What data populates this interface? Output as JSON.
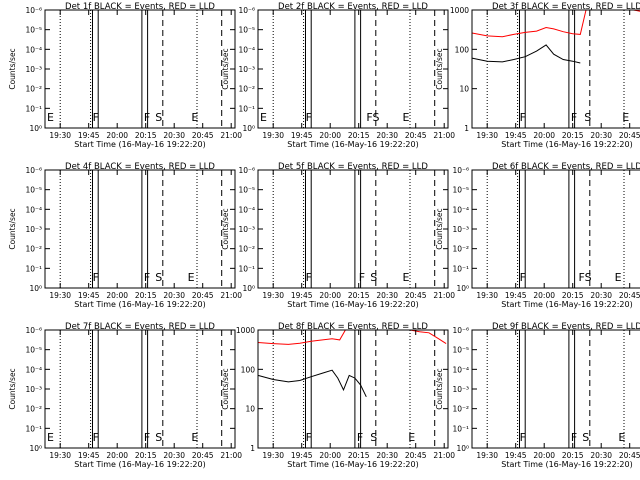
{
  "chart_data": [
    {
      "type": "line",
      "title": "Det 1f BLACK = Events, RED = LLD",
      "xlabel": "Start Time (16-May-16 19:22:20)",
      "ylabel": "Counts/sec",
      "yscale": "log",
      "ylim": [
        1,
        1000000
      ],
      "yticks": [
        "10⁰",
        "10⁻¹",
        "10⁻²",
        "10⁻³",
        "10⁻⁴",
        "10⁻⁵",
        "10⁻⁶"
      ],
      "xticks": [
        "19:30",
        "19:45",
        "20:00",
        "20:15",
        "20:30",
        "20:45",
        "21:00"
      ],
      "markers": [
        {
          "label": "E",
          "x": "19:22"
        },
        {
          "label": "F",
          "x": "19:46"
        },
        {
          "label": "F",
          "x": "20:13"
        },
        {
          "label": "S",
          "x": "20:19"
        },
        {
          "label": "E",
          "x": "20:38"
        }
      ],
      "series": []
    },
    {
      "type": "line",
      "title": "Det 2f BLACK = Events, RED = LLD",
      "xlabel": "Start Time (16-May-16 19:22:20)",
      "ylabel": "Counts/sec",
      "yscale": "log",
      "ylim": [
        1,
        1000000
      ],
      "yticks": [
        "10⁰",
        "10⁻¹",
        "10⁻²",
        "10⁻³",
        "10⁻⁴",
        "10⁻⁵",
        "10⁻⁶"
      ],
      "xticks": [
        "19:30",
        "19:45",
        "20:00",
        "20:15",
        "20:30",
        "20:45",
        "21:00"
      ],
      "markers": [
        {
          "label": "E",
          "x": "19:22"
        },
        {
          "label": "F",
          "x": "19:46"
        },
        {
          "label": "FS",
          "x": "20:18"
        },
        {
          "label": "E",
          "x": "20:37"
        }
      ],
      "series": []
    },
    {
      "type": "line",
      "title": "Det 3f BLACK = Events, RED = LLD",
      "xlabel": "Start Time (16-May-16 19:22:20)",
      "ylabel": "Counts/sec",
      "yscale": "log",
      "ylim": [
        1,
        1000
      ],
      "yticks": [
        "1",
        "10",
        "100",
        "1000"
      ],
      "xticks": [
        "19:30",
        "19:45",
        "20:00",
        "20:15",
        "20:30",
        "20:45",
        "21:00"
      ],
      "markers": [
        {
          "label": "F",
          "x": "19:46"
        },
        {
          "label": "F",
          "x": "20:13"
        },
        {
          "label": "S",
          "x": "20:20"
        },
        {
          "label": "E",
          "x": "20:40"
        }
      ],
      "series": [
        {
          "color": "#ff0000",
          "x": [
            "19:22",
            "19:30",
            "19:38",
            "19:44",
            "19:50",
            "19:56",
            "20:01",
            "20:05",
            "20:10",
            "20:15",
            "20:19",
            "20:22",
            "20:27",
            "20:35",
            "20:42",
            "20:47",
            "20:52",
            "20:57",
            "21:01"
          ],
          "values": [
            260,
            220,
            210,
            240,
            270,
            290,
            360,
            330,
            280,
            250,
            240,
            1000,
            1000,
            1000,
            1000,
            1000,
            900,
            600,
            500
          ]
        },
        {
          "color": "#000000",
          "x": [
            "19:22",
            "19:30",
            "19:38",
            "19:44",
            "19:50",
            "19:56",
            "20:01",
            "20:05",
            "20:10",
            "20:15",
            "20:19"
          ],
          "values": [
            60,
            50,
            48,
            55,
            65,
            90,
            130,
            75,
            55,
            50,
            45
          ]
        }
      ]
    },
    {
      "type": "line",
      "title": "Det 4f BLACK = Events, RED = LLD",
      "xlabel": "Start Time (16-May-16 19:22:20)",
      "ylabel": "Counts/sec",
      "yscale": "log",
      "ylim": [
        1,
        1000000
      ],
      "yticks": [
        "10⁰",
        "10⁻¹",
        "10⁻²",
        "10⁻³",
        "10⁻⁴",
        "10⁻⁵",
        "10⁻⁶"
      ],
      "xticks": [
        "19:30",
        "19:45",
        "20:00",
        "20:15",
        "20:30",
        "20:45",
        "21:00"
      ],
      "markers": [
        {
          "label": "F",
          "x": "19:46"
        },
        {
          "label": "F",
          "x": "20:13"
        },
        {
          "label": "S",
          "x": "20:19"
        },
        {
          "label": "E",
          "x": "20:36"
        }
      ],
      "series": []
    },
    {
      "type": "line",
      "title": "Det 5f BLACK = Events, RED = LLD",
      "xlabel": "Start Time (16-May-16 19:22:20)",
      "ylabel": "Counts/sec",
      "yscale": "log",
      "ylim": [
        1,
        1000000
      ],
      "yticks": [
        "10⁰",
        "10⁻¹",
        "10⁻²",
        "10⁻³",
        "10⁻⁴",
        "10⁻⁵",
        "10⁻⁶"
      ],
      "xticks": [
        "19:30",
        "19:45",
        "20:00",
        "20:15",
        "20:30",
        "20:45",
        "21:00"
      ],
      "markers": [
        {
          "label": "F",
          "x": "19:46"
        },
        {
          "label": "F",
          "x": "20:14"
        },
        {
          "label": "S",
          "x": "20:20"
        },
        {
          "label": "E",
          "x": "20:37"
        }
      ],
      "series": []
    },
    {
      "type": "line",
      "title": "Det 6f BLACK = Events, RED = LLD",
      "xlabel": "Start Time (16-May-16 19:22:20)",
      "ylabel": "Counts/sec",
      "yscale": "log",
      "ylim": [
        1,
        1000000
      ],
      "yticks": [
        "10⁰",
        "10⁻¹",
        "10⁻²",
        "10⁻³",
        "10⁻⁴",
        "10⁻⁵",
        "10⁻⁶"
      ],
      "xticks": [
        "19:30",
        "19:45",
        "20:00",
        "20:15",
        "20:30",
        "20:45",
        "21:00"
      ],
      "markers": [
        {
          "label": "F",
          "x": "19:46"
        },
        {
          "label": "FS",
          "x": "20:17"
        },
        {
          "label": "E",
          "x": "20:36"
        }
      ],
      "series": []
    },
    {
      "type": "line",
      "title": "Det 7f BLACK = Events, RED = LLD",
      "xlabel": "Start Time (16-May-16 19:22:20)",
      "ylabel": "Counts/sec",
      "yscale": "log",
      "ylim": [
        1,
        1000000
      ],
      "yticks": [
        "10⁰",
        "10⁻¹",
        "10⁻²",
        "10⁻³",
        "10⁻⁴",
        "10⁻⁵",
        "10⁻⁶"
      ],
      "xticks": [
        "19:30",
        "19:45",
        "20:00",
        "20:15",
        "20:30",
        "20:45",
        "21:00"
      ],
      "markers": [
        {
          "label": "E",
          "x": "19:22"
        },
        {
          "label": "F",
          "x": "19:46"
        },
        {
          "label": "F",
          "x": "20:13"
        },
        {
          "label": "S",
          "x": "20:19"
        },
        {
          "label": "E",
          "x": "20:38"
        }
      ],
      "series": []
    },
    {
      "type": "line",
      "title": "Det 8f BLACK = Events, RED = LLD",
      "xlabel": "Start Time (16-May-16 19:22:20)",
      "ylabel": "Counts/sec",
      "yscale": "log",
      "ylim": [
        1,
        1000
      ],
      "yticks": [
        "1",
        "10",
        "100",
        "1000"
      ],
      "xticks": [
        "19:30",
        "19:45",
        "20:00",
        "20:15",
        "20:30",
        "20:45",
        "21:00"
      ],
      "markers": [
        {
          "label": "F",
          "x": "19:46"
        },
        {
          "label": "F",
          "x": "20:13"
        },
        {
          "label": "S",
          "x": "20:20"
        },
        {
          "label": "E",
          "x": "20:40"
        }
      ],
      "series": [
        {
          "color": "#ff0000",
          "x": [
            "19:22",
            "19:30",
            "19:38",
            "19:44",
            "19:50",
            "19:56",
            "20:01",
            "20:05",
            "20:08",
            "20:11",
            "20:15",
            "20:19",
            "20:22",
            "20:27",
            "20:35",
            "20:42",
            "20:47",
            "20:52",
            "20:57",
            "21:01"
          ],
          "values": [
            480,
            450,
            430,
            460,
            520,
            560,
            600,
            560,
            1000,
            1000,
            1000,
            1000,
            1000,
            1000,
            1000,
            1000,
            900,
            850,
            600,
            450
          ]
        },
        {
          "color": "#000000",
          "x": [
            "19:22",
            "19:30",
            "19:38",
            "19:44",
            "19:50",
            "19:56",
            "20:01",
            "20:04",
            "20:07",
            "20:10",
            "20:13",
            "20:16",
            "20:19"
          ],
          "values": [
            70,
            55,
            48,
            52,
            65,
            80,
            95,
            60,
            30,
            70,
            60,
            40,
            20
          ]
        }
      ]
    },
    {
      "type": "line",
      "title": "Det 9f BLACK = Events, RED = LLD",
      "xlabel": "Start Time (16-May-16 19:22:20)",
      "ylabel": "Counts/sec",
      "yscale": "log",
      "ylim": [
        1,
        1000000
      ],
      "yticks": [
        "10⁰",
        "10⁻¹",
        "10⁻²",
        "10⁻³",
        "10⁻⁴",
        "10⁻⁵",
        "10⁻⁶"
      ],
      "xticks": [
        "19:30",
        "19:45",
        "20:00",
        "20:15",
        "20:30",
        "20:45",
        "21:00"
      ],
      "markers": [
        {
          "label": "F",
          "x": "19:46"
        },
        {
          "label": "F",
          "x": "20:13"
        },
        {
          "label": "S",
          "x": "20:19"
        },
        {
          "label": "E",
          "x": "20:38"
        }
      ],
      "series": []
    }
  ]
}
